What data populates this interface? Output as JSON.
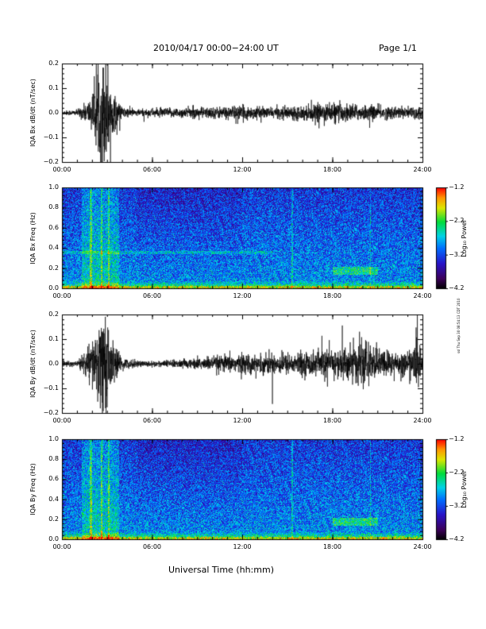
{
  "header": {
    "title": "2010/04/17  00:00−24:00 UT",
    "page": "Page 1/1"
  },
  "side_note": "ssl Thu Sep 30 08:54:13 CDT 2010",
  "xlabel": "Universal Time (hh:mm)",
  "chart_data": [
    {
      "type": "line",
      "ylabel": "IQA Bx dB/dt (nT/sec)",
      "xlim": [
        0,
        24
      ],
      "ylim": [
        -0.2,
        0.2
      ],
      "yticks": [
        "0.2",
        "0.1",
        "0.0",
        "−0.1",
        "−0.2"
      ],
      "xticks": [
        "00:00",
        "06:00",
        "12:00",
        "18:00",
        "24:00"
      ],
      "series": [
        {
          "envelope_x_hours": [
            0,
            1,
            1.5,
            2,
            2.5,
            2.7,
            3,
            3.3,
            4,
            5,
            6,
            8,
            10,
            12,
            13,
            14,
            15,
            16,
            17,
            18,
            19,
            20,
            21,
            22,
            23,
            23.8,
            24
          ],
          "envelope_amp": [
            0.008,
            0.01,
            0.03,
            0.06,
            0.16,
            0.2,
            0.2,
            0.08,
            0.02,
            0.012,
            0.015,
            0.018,
            0.02,
            0.025,
            0.02,
            0.018,
            0.022,
            0.025,
            0.03,
            0.035,
            0.03,
            0.028,
            0.025,
            0.022,
            0.02,
            0.03,
            0.015
          ]
        }
      ]
    },
    {
      "type": "heatmap",
      "ylabel": "IQA Bx Freq (Hz)",
      "xlim": [
        0,
        24
      ],
      "ylim": [
        0,
        1.0
      ],
      "yticks": [
        "1.0",
        "0.8",
        "0.6",
        "0.4",
        "0.2",
        "0.0"
      ],
      "xticks": [
        "00:00",
        "06:00",
        "12:00",
        "18:00",
        "24:00"
      ],
      "colorbar": {
        "label": "Log₁₀ Power",
        "ticks": [
          "−1.2",
          "−2.2",
          "−3.2",
          "−4.2"
        ],
        "range": [
          -4.2,
          -1.2
        ]
      }
    },
    {
      "type": "line",
      "ylabel": "IQA By dB/dt (nT/sec)",
      "xlim": [
        0,
        24
      ],
      "ylim": [
        -0.2,
        0.2
      ],
      "yticks": [
        "0.2",
        "0.1",
        "0.0",
        "−0.1",
        "−0.2"
      ],
      "xticks": [
        "00:00",
        "06:00",
        "12:00",
        "18:00",
        "24:00"
      ],
      "series": [
        {
          "envelope_x_hours": [
            0,
            1,
            1.5,
            2,
            2.5,
            2.7,
            3,
            3.3,
            4,
            5,
            6,
            8,
            10,
            12,
            13,
            14,
            15,
            16,
            17,
            18,
            19,
            20,
            21,
            22,
            23,
            23.8,
            24
          ],
          "envelope_amp": [
            0.008,
            0.01,
            0.04,
            0.08,
            0.15,
            0.19,
            0.18,
            0.08,
            0.02,
            0.012,
            0.01,
            0.015,
            0.025,
            0.035,
            0.03,
            0.04,
            0.035,
            0.04,
            0.045,
            0.05,
            0.06,
            0.08,
            0.05,
            0.045,
            0.04,
            0.09,
            0.02
          ]
        }
      ]
    },
    {
      "type": "heatmap",
      "ylabel": "IQA By Freq (Hz)",
      "xlim": [
        0,
        24
      ],
      "ylim": [
        0,
        1.0
      ],
      "yticks": [
        "1.0",
        "0.8",
        "0.6",
        "0.4",
        "0.2",
        "0.0"
      ],
      "xticks": [
        "00:00",
        "06:00",
        "12:00",
        "18:00",
        "24:00"
      ],
      "colorbar": {
        "label": "Log₁₀ Power",
        "ticks": [
          "−1.2",
          "−2.2",
          "−3.2",
          "−4.2"
        ],
        "range": [
          -4.2,
          -1.2
        ]
      }
    }
  ]
}
